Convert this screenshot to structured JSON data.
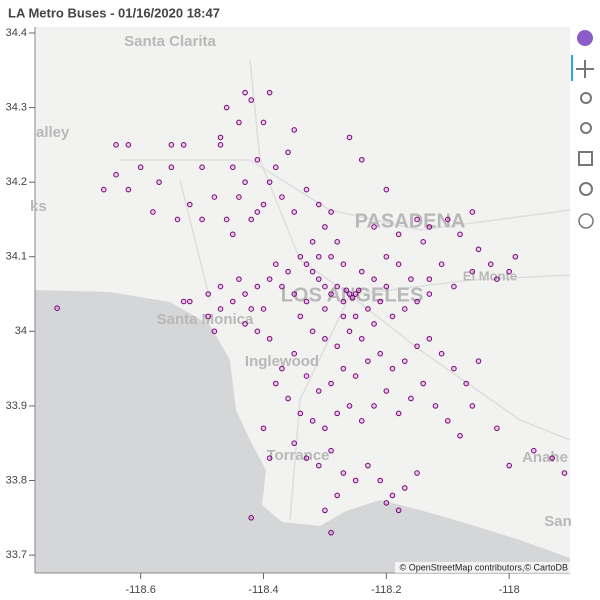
{
  "chart_data": {
    "type": "scatter",
    "title": "LA Metro Buses - 01/16/2020  18:47",
    "attribution": "© OpenStreetMap contributors,© CartoDB",
    "map_labels": [
      "Santa Clarita",
      "alley",
      "ks",
      "PASADENA",
      "El Monte",
      "Santa Monica",
      "Inglewood",
      "LOS ANGELES",
      "Torrance",
      "Anahe",
      "San"
    ],
    "color": "#800080",
    "xlim": [
      -118.772,
      -117.901
    ],
    "ylim": [
      33.676,
      34.408
    ],
    "xticks": [
      -118.6,
      -118.4,
      -118.2,
      -118
    ],
    "yticks": [
      33.7,
      33.8,
      33.9,
      34,
      34.1,
      34.2,
      34.3,
      34.4
    ],
    "x": [
      -118.53,
      -118.55,
      -118.5,
      -118.47,
      -118.45,
      -118.43,
      -118.41,
      -118.39,
      -118.37,
      -118.35,
      -118.48,
      -118.52,
      -118.57,
      -118.6,
      -118.62,
      -118.64,
      -118.66,
      -118.58,
      -118.54,
      -118.5,
      -118.46,
      -118.42,
      -118.4,
      -118.38,
      -118.36,
      -118.44,
      -118.46,
      -118.42,
      -118.4,
      -118.47,
      -118.44,
      -118.41,
      -118.33,
      -118.31,
      -118.29,
      -118.3,
      -118.28,
      -118.32,
      -118.45,
      -118.62,
      -118.64,
      -118.55,
      -118.35,
      -118.43,
      -118.39,
      -118.26,
      -118.24,
      -118.2,
      -118.15,
      -118.13,
      -118.1,
      -118.08,
      -118.06,
      -118.14,
      -118.18,
      -118.22,
      -118.05,
      -118.03,
      -118,
      -117.99,
      -118.02,
      -118.06,
      -118.09,
      -118.11,
      -118.13,
      -118.26,
      -118.25,
      -118.255,
      -118.245,
      -118.265,
      -118.27,
      -118.28,
      -118.29,
      -118.3,
      -118.31,
      -118.32,
      -118.33,
      -118.34,
      -118.31,
      -118.29,
      -118.27,
      -118.24,
      -118.22,
      -118.2,
      -118.21,
      -118.23,
      -118.25,
      -118.27,
      -118.3,
      -118.33,
      -118.35,
      -118.37,
      -118.39,
      -118.41,
      -118.43,
      -118.45,
      -118.47,
      -118.49,
      -118.44,
      -118.36,
      -118.38,
      -118.34,
      -118.32,
      -118.3,
      -118.28,
      -118.26,
      -118.24,
      -118.22,
      -118.19,
      -118.17,
      -118.15,
      -118.13,
      -118.16,
      -118.18,
      -118.2,
      -118.35,
      -118.37,
      -118.33,
      -118.31,
      -118.29,
      -118.27,
      -118.25,
      -118.23,
      -118.21,
      -118.19,
      -118.17,
      -118.15,
      -118.13,
      -118.11,
      -118.09,
      -118.07,
      -118.05,
      -118.39,
      -118.41,
      -118.43,
      -118.38,
      -118.36,
      -118.34,
      -118.32,
      -118.3,
      -118.28,
      -118.26,
      -118.24,
      -118.22,
      -118.2,
      -118.18,
      -118.16,
      -118.14,
      -118.12,
      -118.1,
      -118.08,
      -118.35,
      -118.33,
      -118.31,
      -118.29,
      -118.27,
      -118.25,
      -118.23,
      -118.21,
      -118.19,
      -118.17,
      -118.15,
      -118.28,
      -118.3,
      -118.29,
      -118.4,
      -118.39,
      -118.42,
      -118.2,
      -118.18,
      -118.02,
      -117.96,
      -117.93,
      -117.91,
      -118.06,
      -118,
      -118.48,
      -118.52,
      -118.53,
      -118.49,
      -118.47,
      -118.42,
      -118.4,
      -118.736
    ],
    "values": [
      34.25,
      34.25,
      34.22,
      34.25,
      34.22,
      34.2,
      34.23,
      34.2,
      34.18,
      34.16,
      34.18,
      34.17,
      34.2,
      34.22,
      34.19,
      34.21,
      34.19,
      34.16,
      34.15,
      34.15,
      34.15,
      34.15,
      34.17,
      34.22,
      34.24,
      34.28,
      34.3,
      34.31,
      34.28,
      34.26,
      34.18,
      34.16,
      34.19,
      34.17,
      34.16,
      34.14,
      34.12,
      34.12,
      34.13,
      34.25,
      34.25,
      34.22,
      34.27,
      34.32,
      34.32,
      34.26,
      34.23,
      34.19,
      34.15,
      34.14,
      34.15,
      34.13,
      34.16,
      34.12,
      34.13,
      34.14,
      34.11,
      34.09,
      34.08,
      34.1,
      34.07,
      34.08,
      34.06,
      34.09,
      34.07,
      34.05,
      34.05,
      34.045,
      34.055,
      34.055,
      34.04,
      34.06,
      34.05,
      34.06,
      34.07,
      34.08,
      34.09,
      34.1,
      34.1,
      34.1,
      34.09,
      34.08,
      34.07,
      34.06,
      34.04,
      34.03,
      34.02,
      34.02,
      34.03,
      34.04,
      34.05,
      34.06,
      34.07,
      34.06,
      34.05,
      34.04,
      34.03,
      34.02,
      34.07,
      34.08,
      34.09,
      34.02,
      34,
      33.99,
      33.98,
      34,
      33.99,
      34.01,
      34.02,
      34.03,
      34.04,
      34.05,
      34.07,
      34.09,
      34.1,
      33.97,
      33.95,
      33.94,
      33.92,
      33.93,
      33.95,
      33.94,
      33.96,
      33.97,
      33.95,
      33.96,
      33.98,
      33.99,
      33.97,
      33.95,
      33.93,
      33.96,
      33.99,
      34,
      34.01,
      33.93,
      33.91,
      33.89,
      33.88,
      33.87,
      33.89,
      33.9,
      33.88,
      33.9,
      33.92,
      33.89,
      33.91,
      33.93,
      33.9,
      33.88,
      33.86,
      33.85,
      33.83,
      33.82,
      33.84,
      33.81,
      33.8,
      33.82,
      33.8,
      33.78,
      33.79,
      33.81,
      33.78,
      33.76,
      33.73,
      33.87,
      33.83,
      33.75,
      33.77,
      33.76,
      33.87,
      33.84,
      33.83,
      33.81,
      33.9,
      33.82,
      34,
      34.04,
      34.04,
      34.05,
      34.06,
      34.03,
      34.03,
      34.031
    ]
  }
}
